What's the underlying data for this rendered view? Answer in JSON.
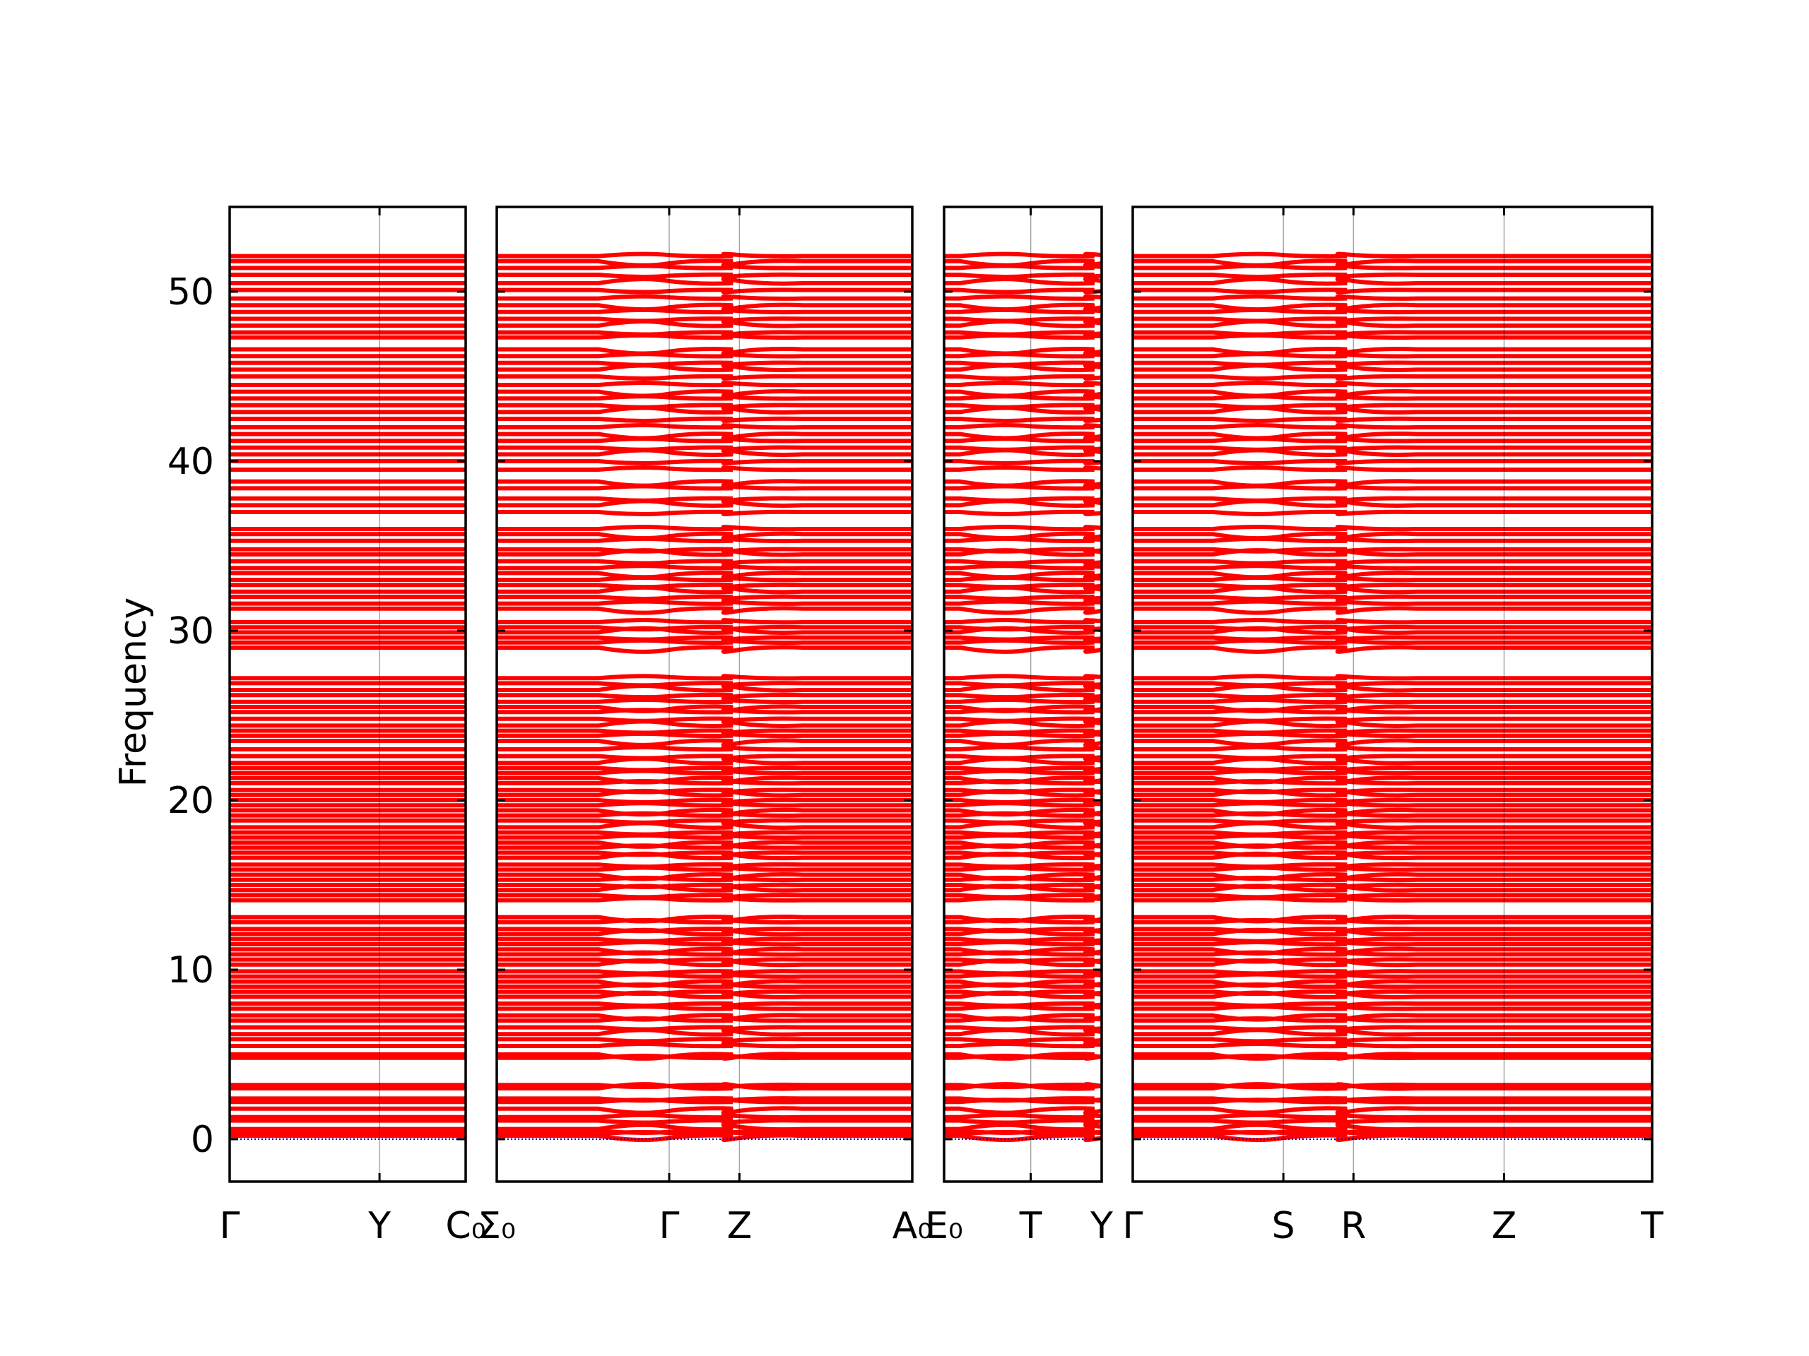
{
  "chart_data": {
    "type": "line",
    "ylabel": "Frequency",
    "ylim": [
      -2.5,
      55
    ],
    "yticks": [
      0,
      10,
      20,
      30,
      40,
      50
    ],
    "grid": false,
    "line_color": "#ff0000",
    "zero_line_color": "#0000cc",
    "panels": [
      {
        "labels": [
          "Γ",
          "Y",
          "C₀"
        ],
        "label_positions": [
          0,
          0.635,
          1
        ],
        "branch_points": []
      },
      {
        "labels": [
          "Σ₀",
          "Γ",
          "Z",
          "A₀"
        ],
        "label_positions": [
          0,
          0.415,
          0.584,
          1
        ],
        "branch_points": [
          0.415,
          0.584
        ]
      },
      {
        "labels": [
          "E₀",
          "T",
          "Y"
        ],
        "label_positions": [
          0,
          0.55,
          1
        ],
        "branch_points": [
          0.55,
          1
        ]
      },
      {
        "labels": [
          "Γ",
          "S",
          "R",
          "Z",
          "T"
        ],
        "label_positions": [
          0,
          0.29,
          0.425,
          0.715,
          1
        ],
        "branch_points": [
          0.29,
          0.425
        ]
      }
    ],
    "series": [
      {
        "values": [
          0.2,
          0.3,
          0.5,
          0.6,
          1.1,
          1.3,
          1.8,
          2.2,
          2.4,
          3.0,
          3.2
        ]
      },
      {
        "values": [
          4.8,
          5.0,
          5.5,
          5.9,
          6.2,
          6.6,
          7.0,
          7.3,
          7.7,
          8.0,
          8.4,
          8.7,
          9.0,
          9.3,
          9.6,
          9.9,
          10.3,
          10.6,
          10.9,
          11.2,
          11.5,
          11.8,
          12.1,
          12.4,
          12.8,
          13.1
        ]
      },
      {
        "values": [
          14.1,
          14.4,
          14.7,
          15.0,
          15.3,
          15.6,
          15.9,
          16.2,
          16.6,
          16.9,
          17.2,
          17.5,
          17.8,
          18.1,
          18.4,
          18.8,
          19.1,
          19.4,
          19.7,
          20.0,
          20.3,
          20.6,
          21.0,
          21.3,
          21.6,
          21.9,
          22.2,
          22.6,
          23.0
        ]
      },
      {
        "values": [
          23.5,
          23.8,
          24.1,
          24.4,
          24.8,
          25.2,
          25.5,
          25.8,
          26.2,
          26.5,
          26.9,
          27.2
        ]
      },
      {
        "values": [
          29.0,
          29.3,
          29.6,
          29.9,
          30.2,
          30.5,
          31.3,
          31.6,
          32.0,
          32.3,
          32.7,
          33.0,
          33.4,
          33.7,
          34.1,
          34.5,
          34.8,
          35.3,
          35.7,
          36.0
        ]
      },
      {
        "values": [
          37.0,
          37.4,
          37.8,
          38.4,
          38.8,
          39.5,
          40.0,
          40.4,
          40.8,
          41.2,
          41.6,
          42.0,
          42.5,
          42.9,
          43.3,
          43.7,
          44.1,
          44.5
        ]
      },
      {
        "values": [
          45.0,
          45.4,
          45.8,
          46.2,
          46.6,
          47.3,
          47.6,
          48.0,
          48.4,
          48.8,
          49.2,
          49.6,
          50.1,
          50.5,
          51.0,
          51.4,
          51.8,
          52.1
        ]
      }
    ]
  }
}
